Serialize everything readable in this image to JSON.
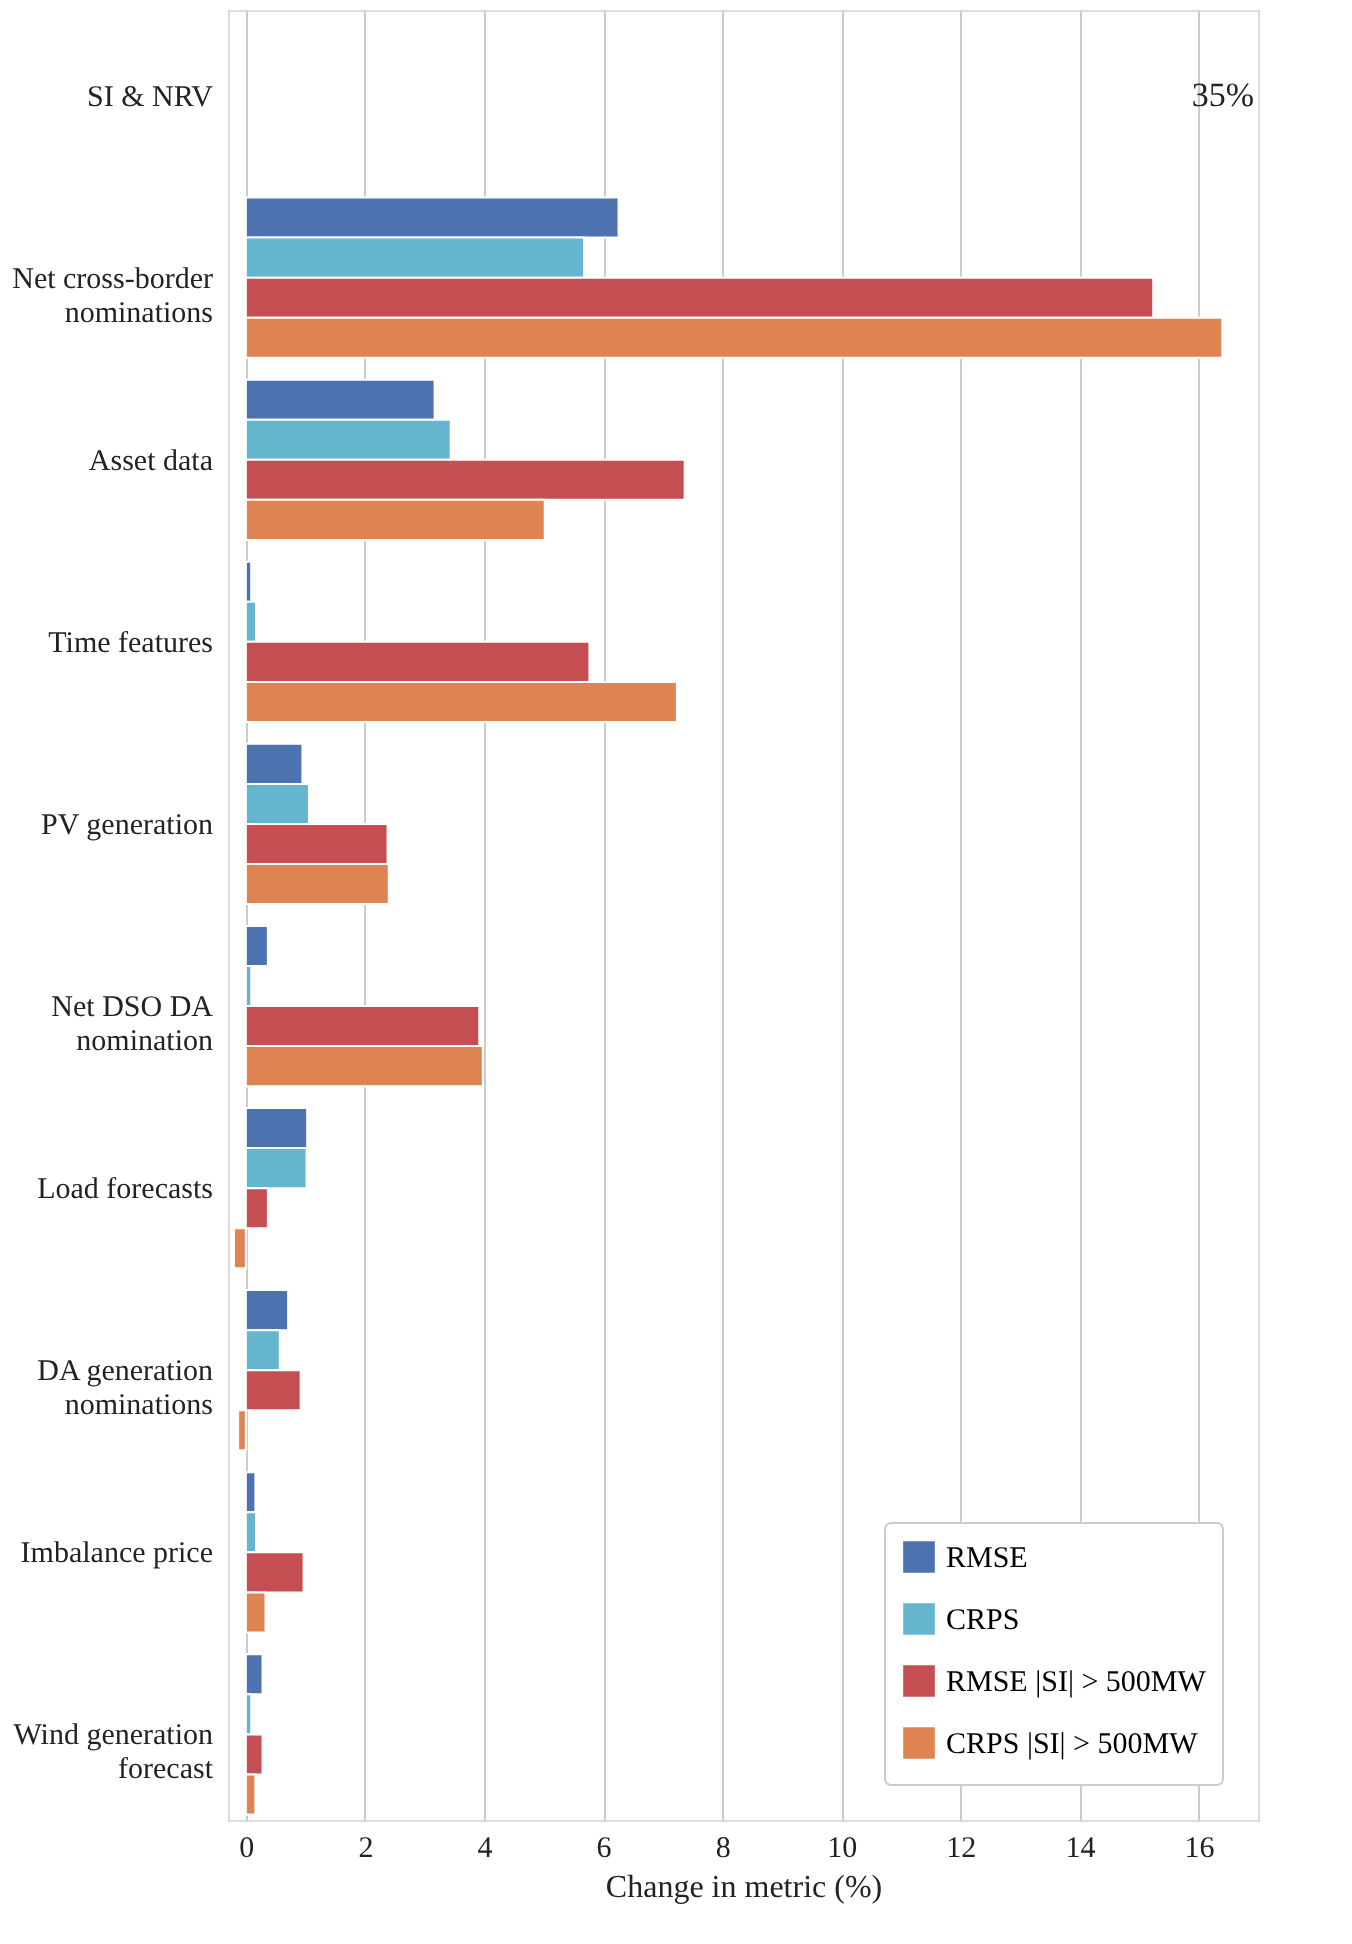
{
  "chart_data": {
    "type": "bar",
    "orientation": "horizontal",
    "xlabel": "Change in metric (%)",
    "categories": [
      "SI & NRV",
      "Net cross-border\nnominations",
      "Asset data",
      "Time features",
      "PV generation",
      "Net DSO DA\nnomination",
      "Load forecasts",
      "DA generation\nnominations",
      "Imbalance price",
      "Wind generation\nforecast"
    ],
    "series": [
      {
        "name": "RMSE",
        "color": "#4c72b0",
        "values": [
          null,
          6.26,
          3.17,
          0.09,
          0.95,
          0.37,
          1.03,
          0.71,
          0.16,
          0.28
        ]
      },
      {
        "name": "CRPS",
        "color": "#64b5cd",
        "values": [
          null,
          5.68,
          3.44,
          0.17,
          1.06,
          0.09,
          1.02,
          0.57,
          0.17,
          0.09
        ]
      },
      {
        "name": "RMSE |SI| > 500MW",
        "color": "#c44e52",
        "values": [
          null,
          15.24,
          7.37,
          5.77,
          2.38,
          3.92,
          0.37,
          0.92,
          0.97,
          0.28
        ]
      },
      {
        "name": "CRPS |SI| > 500MW",
        "color": "#dd8452",
        "values": [
          null,
          16.4,
          5.02,
          7.24,
          2.4,
          3.98,
          -0.2,
          -0.13,
          0.33,
          0.16
        ]
      }
    ],
    "annotations": [
      "35%"
    ],
    "xlim": [
      -0.3,
      17
    ],
    "xticks": [
      0,
      2,
      4,
      6,
      8,
      10,
      12,
      14,
      16
    ],
    "grid": "x",
    "legend": "bottom right"
  }
}
